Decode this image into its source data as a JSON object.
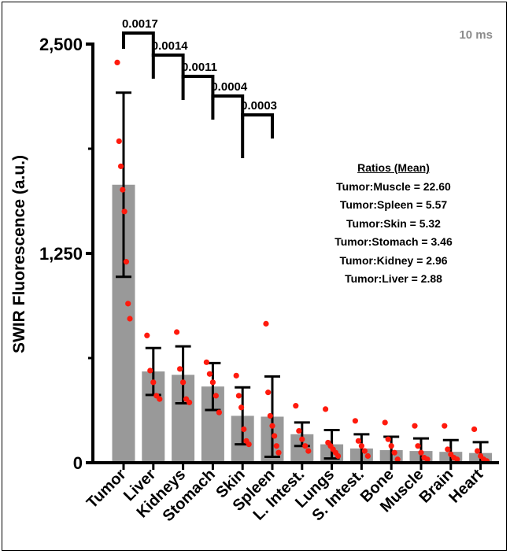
{
  "corner_label": "10 ms",
  "ratios": {
    "title": "Ratios (Mean)",
    "lines": [
      "Tumor:Muscle = 22.60",
      "Tumor:Spleen = 5.57",
      "Tumor:Skin = 5.32",
      "Tumor:Stomach = 3.46",
      "Tumor:Kidney = 2.96",
      "Tumor:Liver = 2.88"
    ]
  },
  "colors": {
    "bar": "#999999",
    "point": "#ff1a0d",
    "axis": "#000000",
    "corner": "#8c8c8c"
  },
  "chart_data": {
    "type": "bar",
    "ylabel": "SWIR Fluorescence (a.u.)",
    "xlabel": "",
    "ylim": [
      0,
      2500
    ],
    "yticks": [
      0,
      1250,
      2500
    ],
    "ytick_labels": [
      "0",
      "1,250",
      "2,500"
    ],
    "categories": [
      "Tumor",
      "Liver",
      "Kidneys",
      "Stomach",
      "Skin",
      "Spleen",
      "L. Intest.",
      "Lungs",
      "S. Intest.",
      "Bone",
      "Muscle",
      "Brain",
      "Heart"
    ],
    "values": [
      1660,
      545,
      525,
      455,
      280,
      275,
      170,
      110,
      85,
      75,
      70,
      65,
      58
    ],
    "error": [
      550,
      140,
      170,
      140,
      170,
      240,
      70,
      85,
      85,
      80,
      75,
      70,
      65
    ],
    "points": [
      [
        2390,
        1920,
        1770,
        1630,
        1500,
        1200,
        950,
        860
      ],
      [
        760,
        550,
        480,
        400,
        380
      ],
      [
        780,
        560,
        480,
        380,
        360
      ],
      [
        600,
        530,
        480,
        400,
        300
      ],
      [
        520,
        400,
        330,
        200,
        130,
        110
      ],
      [
        830,
        420,
        280,
        220,
        160,
        100,
        60
      ],
      [
        340,
        190,
        140,
        100,
        70
      ],
      [
        320,
        120,
        100,
        80,
        60,
        40
      ],
      [
        250,
        130,
        100,
        70,
        40
      ],
      [
        240,
        140,
        100,
        60,
        20
      ],
      [
        220,
        100,
        60,
        30,
        20
      ],
      [
        220,
        80,
        50,
        30,
        20
      ],
      [
        200,
        70,
        40,
        20,
        10
      ]
    ],
    "comparisons": [
      {
        "from": "Tumor",
        "to": "Liver",
        "p": "0.0017"
      },
      {
        "from": "Liver",
        "to": "Kidneys",
        "p": "0.0014"
      },
      {
        "from": "Kidneys",
        "to": "Stomach",
        "p": "0.0011"
      },
      {
        "from": "Stomach",
        "to": "Skin",
        "p": "0.0004"
      },
      {
        "from": "Skin",
        "to": "Spleen",
        "p": "0.0003"
      }
    ]
  }
}
